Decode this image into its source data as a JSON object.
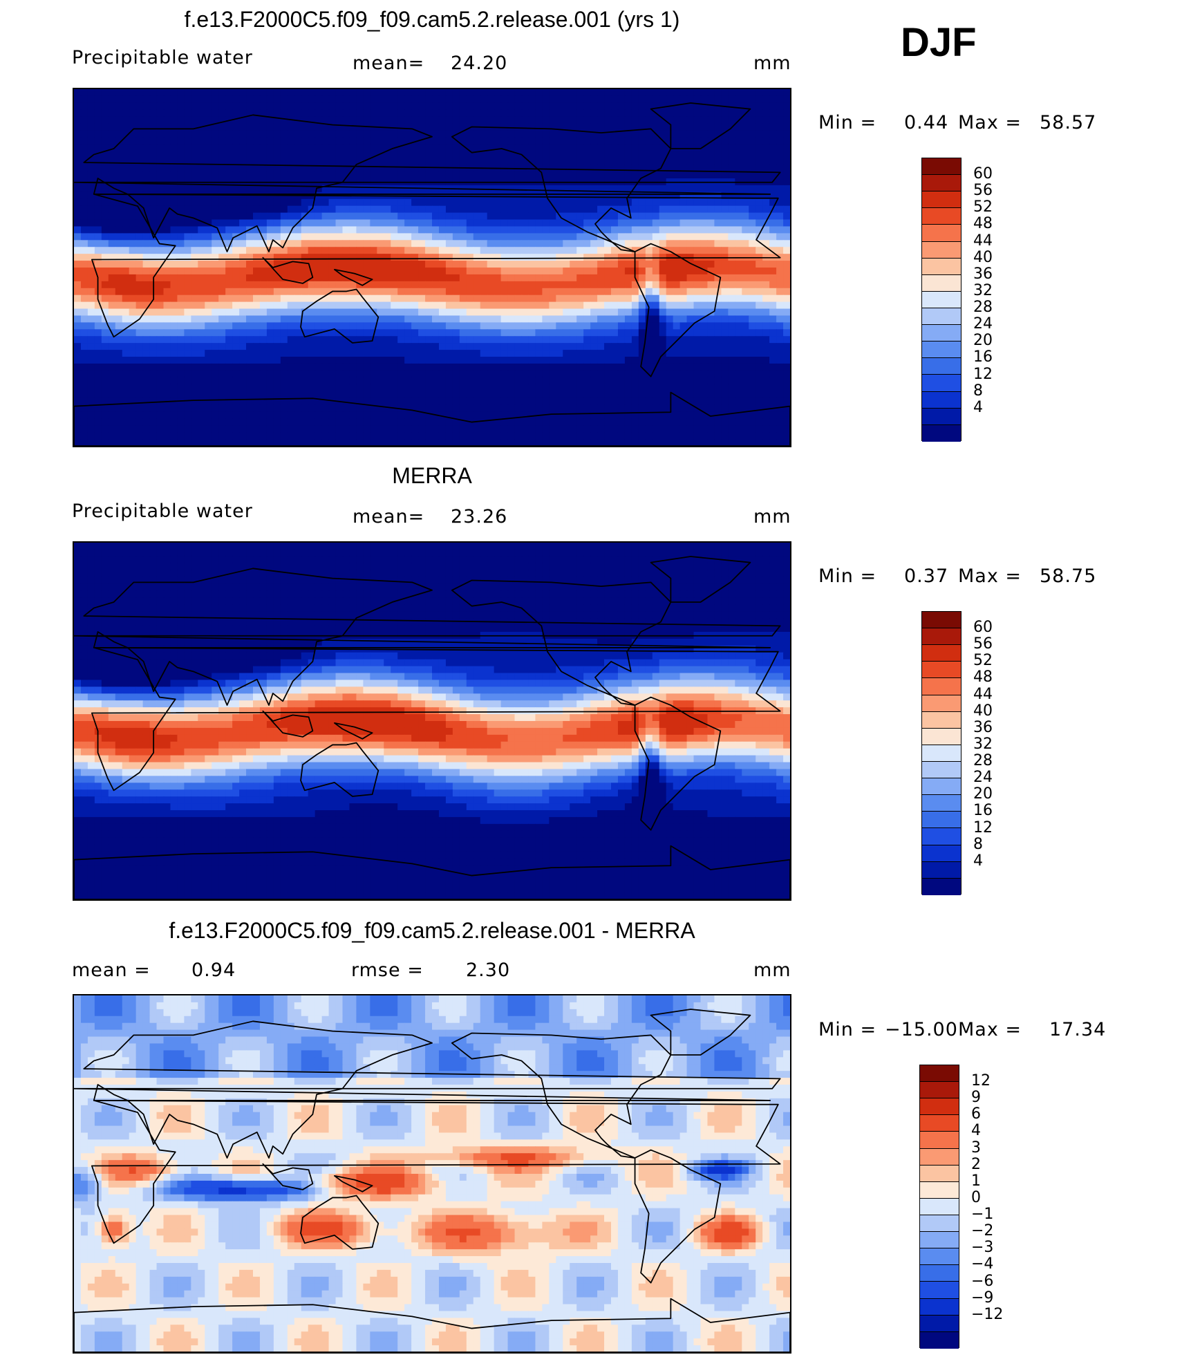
{
  "season": "DJF",
  "colors": {
    "abs": [
      "#00087f",
      "#001aa8",
      "#0b33cf",
      "#1f4fe3",
      "#386ee8",
      "#5a8cf0",
      "#85abf5",
      "#b1c9f7",
      "#d9e7fb",
      "#fbe5d4",
      "#fbc4a2",
      "#fa9a73",
      "#f5734b",
      "#e84a25",
      "#d12e10",
      "#a9190a",
      "#7a0b03"
    ],
    "diff": [
      "#00087f",
      "#001aa8",
      "#0b33cf",
      "#1f4fe3",
      "#386ee8",
      "#5a8cf0",
      "#85abf5",
      "#b1c9f7",
      "#d9e7fb",
      "#fde9d7",
      "#fbc4a2",
      "#fa9a73",
      "#f5734b",
      "#e84a25",
      "#d12e10",
      "#a9190a",
      "#7a0b03"
    ],
    "coast": "#000000"
  },
  "panels": [
    {
      "title": "f.e13.F2000C5.f09_f09.cam5.2.release.001 (yrs 1)",
      "left_label": "Precipitable  water",
      "center_label": "mean=",
      "center_value": "24.20",
      "units": "mm",
      "min_label": "Min  =",
      "min_value": "0.44",
      "max_label": "Max  =",
      "max_value": "58.57"
    },
    {
      "title": "MERRA",
      "left_label": "Precipitable  water",
      "center_label": "mean=",
      "center_value": "23.26",
      "units": "mm",
      "min_label": "Min  =",
      "min_value": "0.37",
      "max_label": "Max  =",
      "max_value": "58.75"
    },
    {
      "title": "f.e13.F2000C5.f09_f09.cam5.2.release.001 - MERRA",
      "left_label": "mean  =",
      "left_value": "0.94",
      "center_label": "rmse  =",
      "center_value": "2.30",
      "units": "mm",
      "min_label": "Min  =",
      "min_value": "−15.00",
      "max_label": "Max  =",
      "max_value": "17.34"
    }
  ],
  "chart_data": [
    {
      "type": "heatmap",
      "title": "f.e13.F2000C5.f09_f09.cam5.2.release.001 (yrs 1)",
      "variable": "Precipitable water",
      "units": "mm",
      "mean": 24.2,
      "min": 0.44,
      "max": 58.57,
      "levels": [
        4,
        8,
        12,
        16,
        20,
        24,
        28,
        32,
        36,
        40,
        44,
        48,
        52,
        56,
        60
      ],
      "level_labels": [
        "60",
        "56",
        "52",
        "48",
        "44",
        "40",
        "36",
        "32",
        "28",
        "24",
        "20",
        "16",
        "12",
        "8",
        "4"
      ]
    },
    {
      "type": "heatmap",
      "title": "MERRA",
      "variable": "Precipitable water",
      "units": "mm",
      "mean": 23.26,
      "min": 0.37,
      "max": 58.75,
      "levels": [
        4,
        8,
        12,
        16,
        20,
        24,
        28,
        32,
        36,
        40,
        44,
        48,
        52,
        56,
        60
      ],
      "level_labels": [
        "60",
        "56",
        "52",
        "48",
        "44",
        "40",
        "36",
        "32",
        "28",
        "24",
        "20",
        "16",
        "12",
        "8",
        "4"
      ]
    },
    {
      "type": "heatmap",
      "title": "f.e13.F2000C5.f09_f09.cam5.2.release.001 - MERRA",
      "units": "mm",
      "mean": 0.94,
      "rmse": 2.3,
      "min": -15.0,
      "max": 17.34,
      "levels": [
        -12,
        -9,
        -6,
        -4,
        -3,
        -2,
        -1,
        0,
        1,
        2,
        3,
        4,
        6,
        9,
        12
      ],
      "level_labels": [
        "12",
        "9",
        "6",
        "4",
        "3",
        "2",
        "1",
        "0",
        "−1",
        "−2",
        "−3",
        "−4",
        "−6",
        "−9",
        "−12"
      ]
    }
  ]
}
